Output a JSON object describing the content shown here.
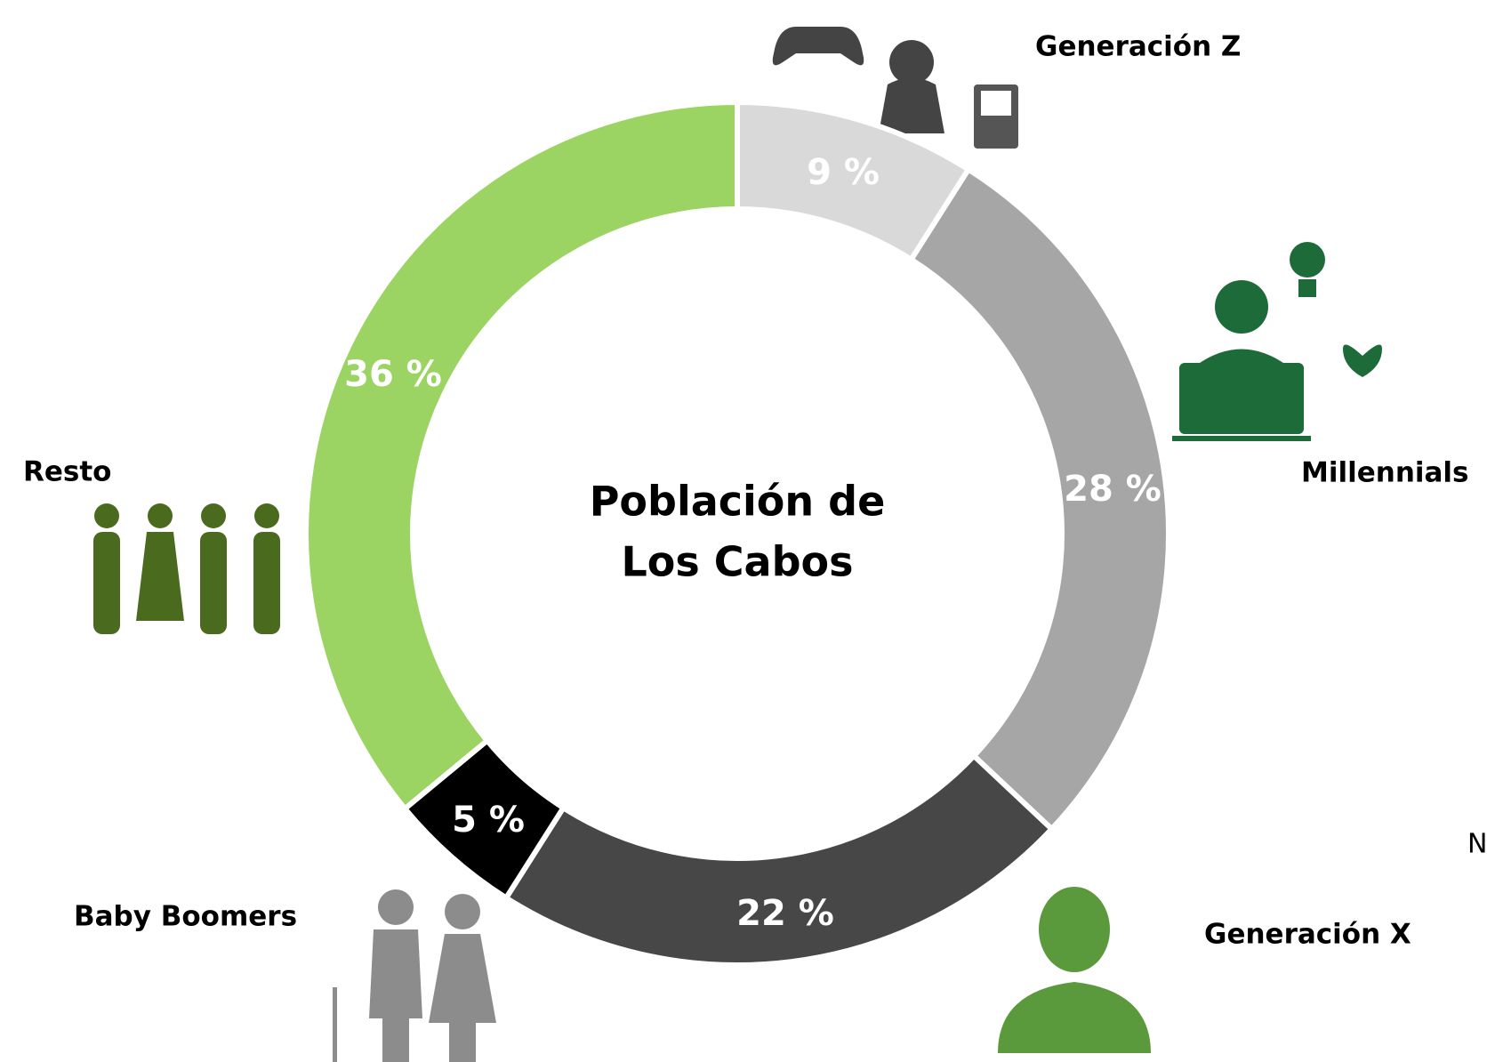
{
  "chart_data": {
    "type": "donut",
    "title_lines": [
      "Población de",
      "Los Cabos"
    ],
    "categories": [
      "Generación Z",
      "Millennials",
      "Generación X",
      "Baby Boomers",
      "Resto"
    ],
    "values": [
      9,
      28,
      22,
      5,
      36
    ],
    "value_labels": [
      "9 %",
      "28 %",
      "22 %",
      "5 %",
      "36 %"
    ],
    "colors": [
      "#d9d9d9",
      "#a6a6a6",
      "#474747",
      "#000000",
      "#9bd462"
    ],
    "annotations": [
      "N"
    ]
  }
}
